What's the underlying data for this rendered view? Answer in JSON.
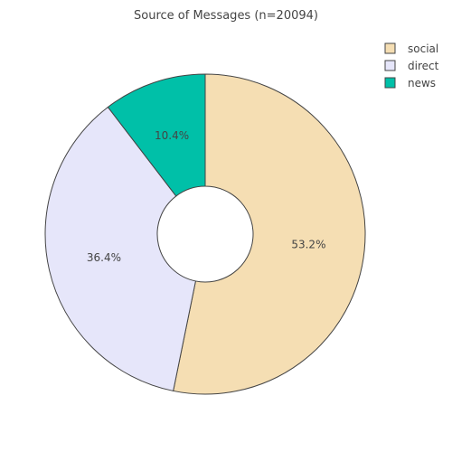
{
  "chart_data": {
    "type": "pie",
    "title": "Source of Messages (n=20094)",
    "hole": "donut",
    "legend_position": "top-right",
    "slices": [
      {
        "name": "social",
        "value": 53.2,
        "label": "53.2%",
        "color": "#f5deb3"
      },
      {
        "name": "direct",
        "value": 36.4,
        "label": "36.4%",
        "color": "#e6e6fa"
      },
      {
        "name": "news",
        "value": 10.4,
        "label": "10.4%",
        "color": "#00c0a8"
      }
    ]
  }
}
